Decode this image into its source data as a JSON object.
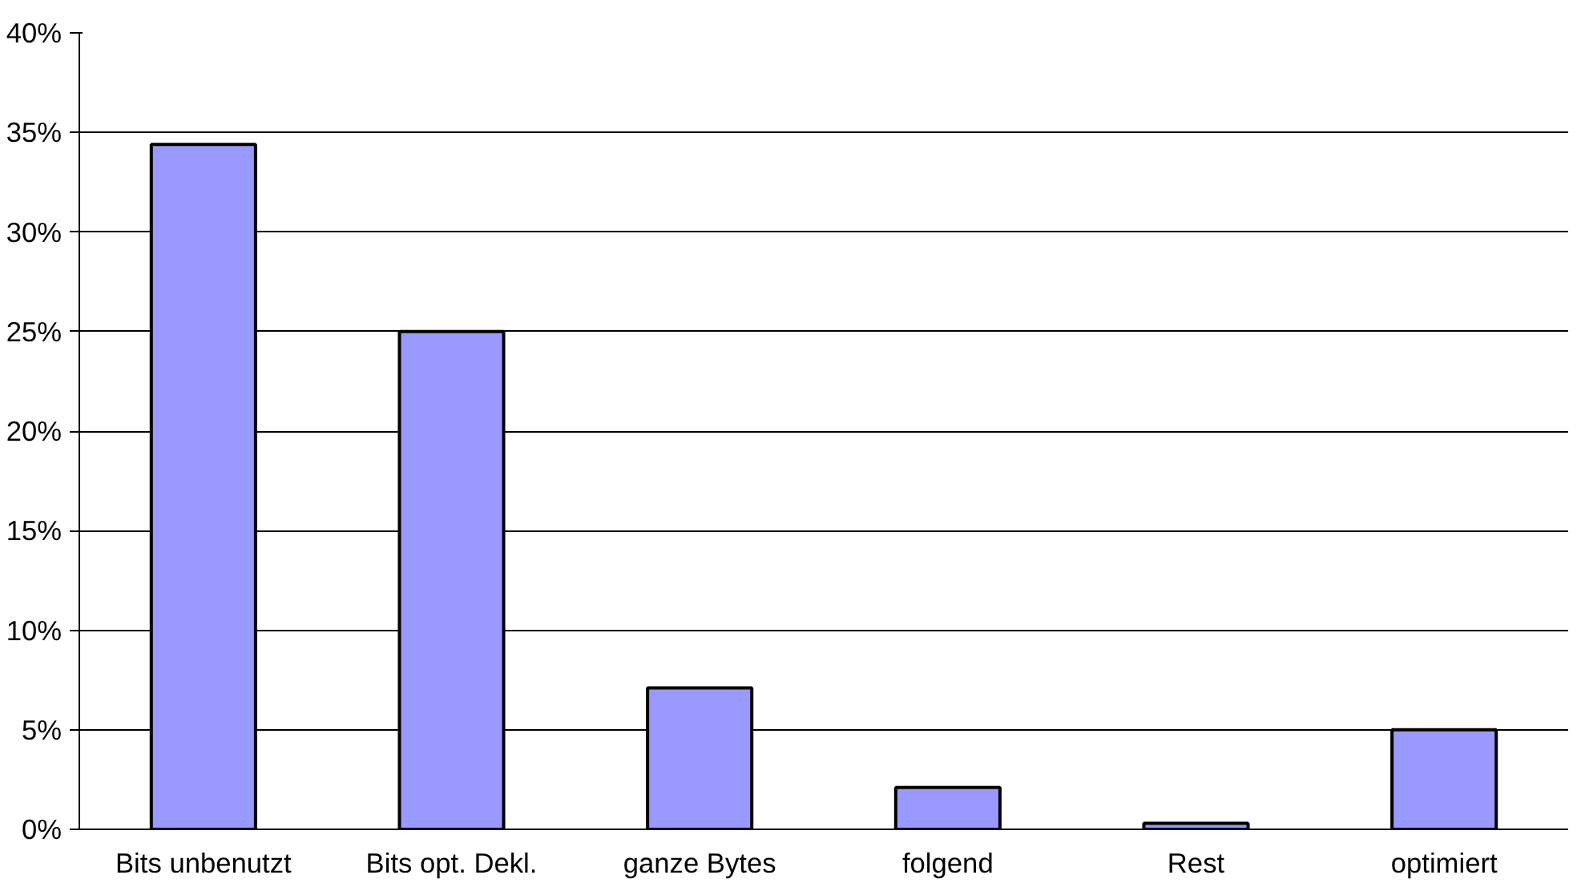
{
  "chart_data": {
    "type": "bar",
    "categories": [
      "Bits unbenutzt",
      "Bits opt. Dekl.",
      "ganze Bytes",
      "folgend",
      "Rest",
      "optimiert"
    ],
    "values": [
      34.4,
      25,
      7.1,
      2.1,
      0.3,
      5
    ],
    "color": "#9999ff",
    "ylim": [
      0,
      40
    ],
    "yticks": [
      {
        "value": 0,
        "label": "0%"
      },
      {
        "value": 5,
        "label": "5%"
      },
      {
        "value": 10,
        "label": "10%"
      },
      {
        "value": 15,
        "label": "15%"
      },
      {
        "value": 20,
        "label": "20%"
      },
      {
        "value": 25,
        "label": "25%"
      },
      {
        "value": 30,
        "label": "30%"
      },
      {
        "value": 35,
        "label": "35%"
      },
      {
        "value": 40,
        "label": "40%"
      }
    ],
    "grid": "y"
  }
}
